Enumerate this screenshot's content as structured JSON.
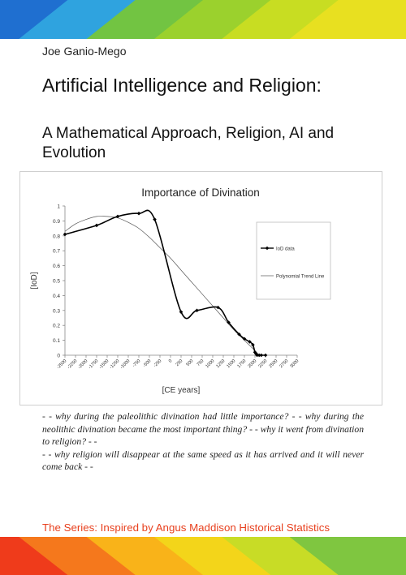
{
  "cover": {
    "author": "Joe Ganio-Mego",
    "title_main": "Artificial Intelligence and Religion:",
    "title_sub": "A Mathematical Approach, Religion, AI and Evolution",
    "quote_line1": "- -  why during the paleolithic divination had little importance? - - why during the neolithic divination became the most important thing? - - why it went from divination to religion? - -",
    "quote_line2": "- - why religion will disappear at the same speed as it has arrived and it will never come back - -",
    "series": "The Series: Inspired by Angus Maddison Historical Statistics",
    "colors": {
      "stripe_top": [
        "#1f6fd0",
        "#2fa3df",
        "#72c442",
        "#9bd12d",
        "#c8dd22",
        "#e8e020"
      ],
      "stripe_bottom": [
        "#ef3b1b",
        "#f5781c",
        "#f9b319",
        "#f3d51a",
        "#c8dc26",
        "#7fc640"
      ],
      "series_text": "#e8401e"
    }
  },
  "chart_data": {
    "type": "line",
    "title": "Importance of Divination",
    "xlabel": "[CE years]",
    "ylabel": "[IoD]",
    "xlim": [
      -2500,
      3000
    ],
    "ylim": [
      0,
      1
    ],
    "xticks": [
      -2500,
      -2250,
      -2000,
      -1750,
      -1500,
      -1250,
      -1000,
      -750,
      -500,
      -250,
      0,
      250,
      500,
      750,
      1000,
      1250,
      1500,
      1750,
      2000,
      2250,
      2500,
      2750,
      3000
    ],
    "yticks": [
      0,
      0.1,
      0.2,
      0.3,
      0.4,
      0.5,
      0.6,
      0.7,
      0.8,
      0.9,
      1
    ],
    "grid": false,
    "legend_placement": "right",
    "series": [
      {
        "name": "IoD data",
        "style": "smooth-line-with-diamond-markers",
        "color": "#000000",
        "x": [
          -2500,
          -1750,
          -1250,
          -750,
          -375,
          250,
          625,
          1125,
          1375,
          1625,
          1750,
          1875,
          1950,
          2000,
          2025,
          2050,
          2100,
          2150,
          2250
        ],
        "y": [
          0.81,
          0.87,
          0.93,
          0.95,
          0.91,
          0.29,
          0.3,
          0.32,
          0.22,
          0.14,
          0.11,
          0.09,
          0.07,
          0.02,
          0.01,
          0.0,
          0.0,
          0.0,
          0.0
        ]
      },
      {
        "name": "Polynomial Trend Line",
        "style": "thin-line",
        "color": "#555555",
        "x": [
          -2500,
          -2250,
          -2000,
          -1750,
          -1500,
          -1250,
          -1000,
          -750,
          -500,
          -250,
          0,
          250,
          500,
          750,
          1000,
          1250,
          1500,
          1750,
          2000,
          2100
        ],
        "y": [
          0.83,
          0.88,
          0.91,
          0.93,
          0.93,
          0.92,
          0.89,
          0.85,
          0.79,
          0.72,
          0.65,
          0.57,
          0.49,
          0.41,
          0.33,
          0.25,
          0.17,
          0.1,
          0.03,
          0.0
        ]
      }
    ]
  }
}
